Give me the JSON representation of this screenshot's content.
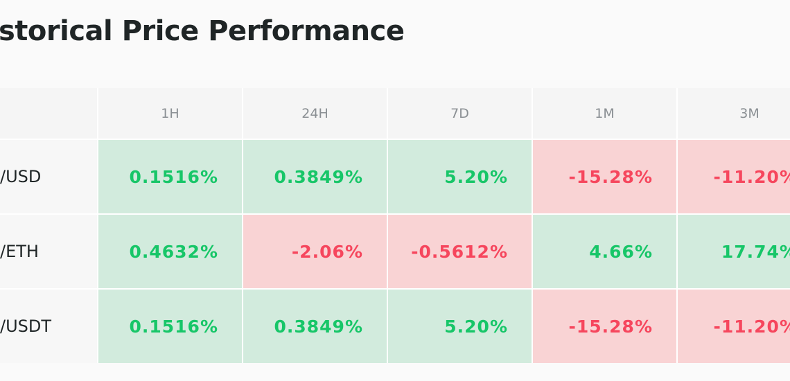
{
  "header": {
    "title": "storical Price Performance"
  },
  "table": {
    "columns": [
      "1H",
      "24H",
      "7D",
      "1M",
      "3M"
    ],
    "rows": [
      {
        "label": "/USD",
        "cells": [
          "0.1516%",
          "0.3849%",
          "5.20%",
          "-15.28%",
          "-11.20%"
        ]
      },
      {
        "label": "/ETH",
        "cells": [
          "0.4632%",
          "-2.06%",
          "-0.5612%",
          "4.66%",
          "17.74%"
        ]
      },
      {
        "label": "/USDT",
        "cells": [
          "0.1516%",
          "0.3849%",
          "5.20%",
          "-15.28%",
          "-11.20%"
        ]
      }
    ]
  }
}
